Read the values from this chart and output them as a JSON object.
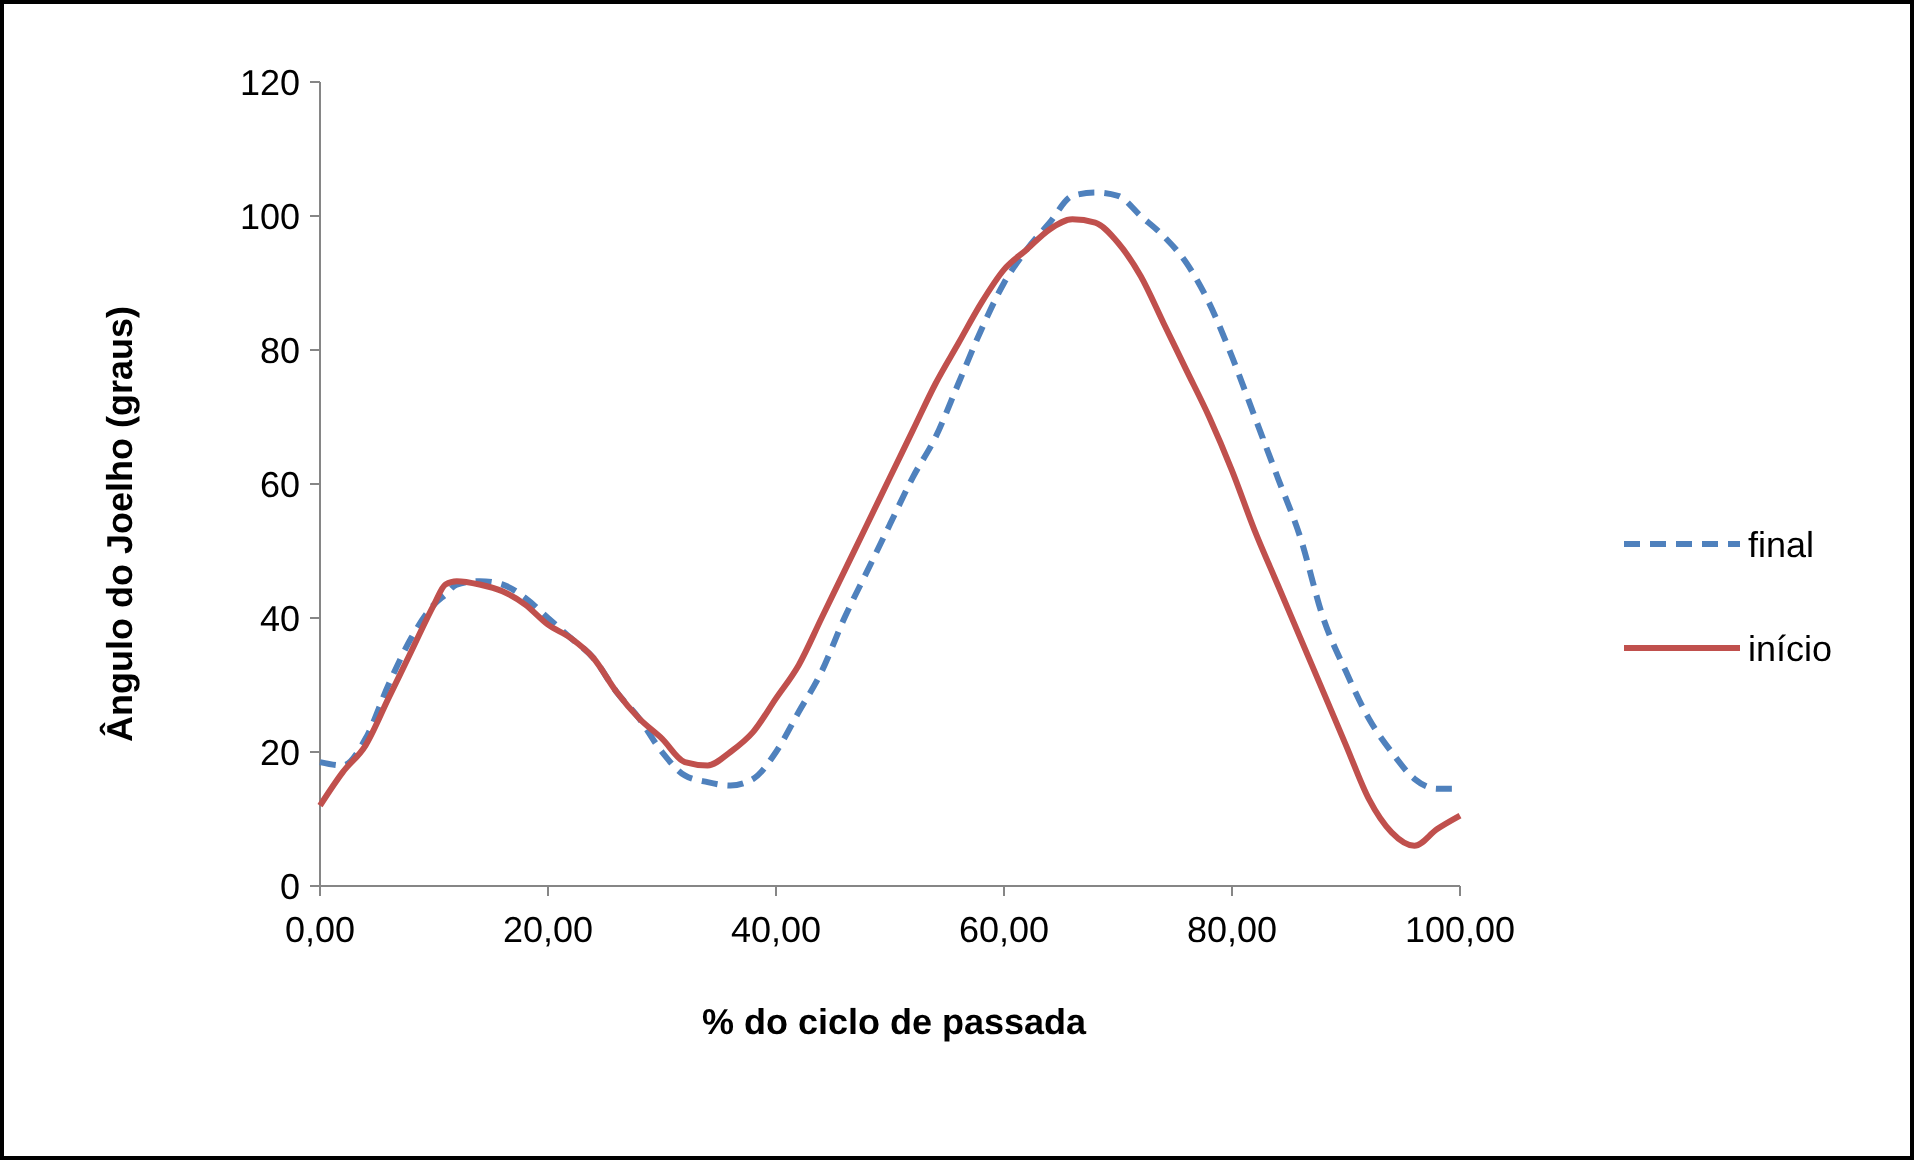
{
  "chart_data": {
    "type": "line",
    "xlabel": "% do ciclo de passada",
    "ylabel": "Ângulo do Joelho (graus)",
    "x": [
      0,
      2,
      4,
      6,
      8,
      10,
      11,
      12,
      14,
      16,
      18,
      20,
      22,
      24,
      26,
      28,
      30,
      32,
      34,
      36,
      38,
      40,
      42,
      44,
      46,
      48,
      50,
      52,
      54,
      56,
      58,
      60,
      62,
      64,
      66,
      68,
      70,
      72,
      74,
      76,
      78,
      80,
      82,
      84,
      86,
      88,
      90,
      92,
      94,
      96,
      98,
      100
    ],
    "series": [
      {
        "name": "final",
        "color": "#4f81bd",
        "line_style": "dashed",
        "values": [
          18.5,
          18,
          22,
          30,
          37,
          42,
          43.5,
          45,
          45.5,
          45,
          43,
          40,
          37,
          34,
          29,
          25,
          20,
          16.5,
          15.5,
          15,
          16,
          20,
          26,
          32,
          40,
          47,
          54,
          61,
          67,
          75,
          83,
          90,
          95,
          99,
          103,
          103.5,
          103,
          100,
          97,
          93,
          87,
          79,
          70,
          61,
          52,
          40,
          32,
          25,
          20,
          16,
          14.5,
          14.5
        ]
      },
      {
        "name": "início",
        "color": "#c0504d",
        "line_style": "solid",
        "values": [
          12,
          17,
          21,
          28,
          35,
          42,
          45,
          45.5,
          45,
          44,
          42,
          39,
          37,
          34,
          29,
          25,
          22,
          18.5,
          18,
          20,
          23,
          28,
          33,
          40,
          47,
          54,
          61,
          68,
          75,
          81,
          87,
          92,
          95,
          98,
          99.5,
          99,
          96,
          91,
          84,
          77,
          70,
          62,
          53,
          45,
          37,
          29,
          21,
          13,
          8,
          6,
          8.5,
          10.5
        ]
      }
    ],
    "xlim": [
      0,
      100
    ],
    "xticks": [
      {
        "value": 0,
        "label": "0,00"
      },
      {
        "value": 20,
        "label": "20,00"
      },
      {
        "value": 40,
        "label": "40,00"
      },
      {
        "value": 60,
        "label": "60,00"
      },
      {
        "value": 80,
        "label": "80,00"
      },
      {
        "value": 100,
        "label": "100,00"
      }
    ],
    "ylim": [
      0,
      120
    ],
    "yticks": [
      0,
      20,
      40,
      60,
      80,
      100,
      120
    ],
    "legend": "right",
    "grid": false
  }
}
